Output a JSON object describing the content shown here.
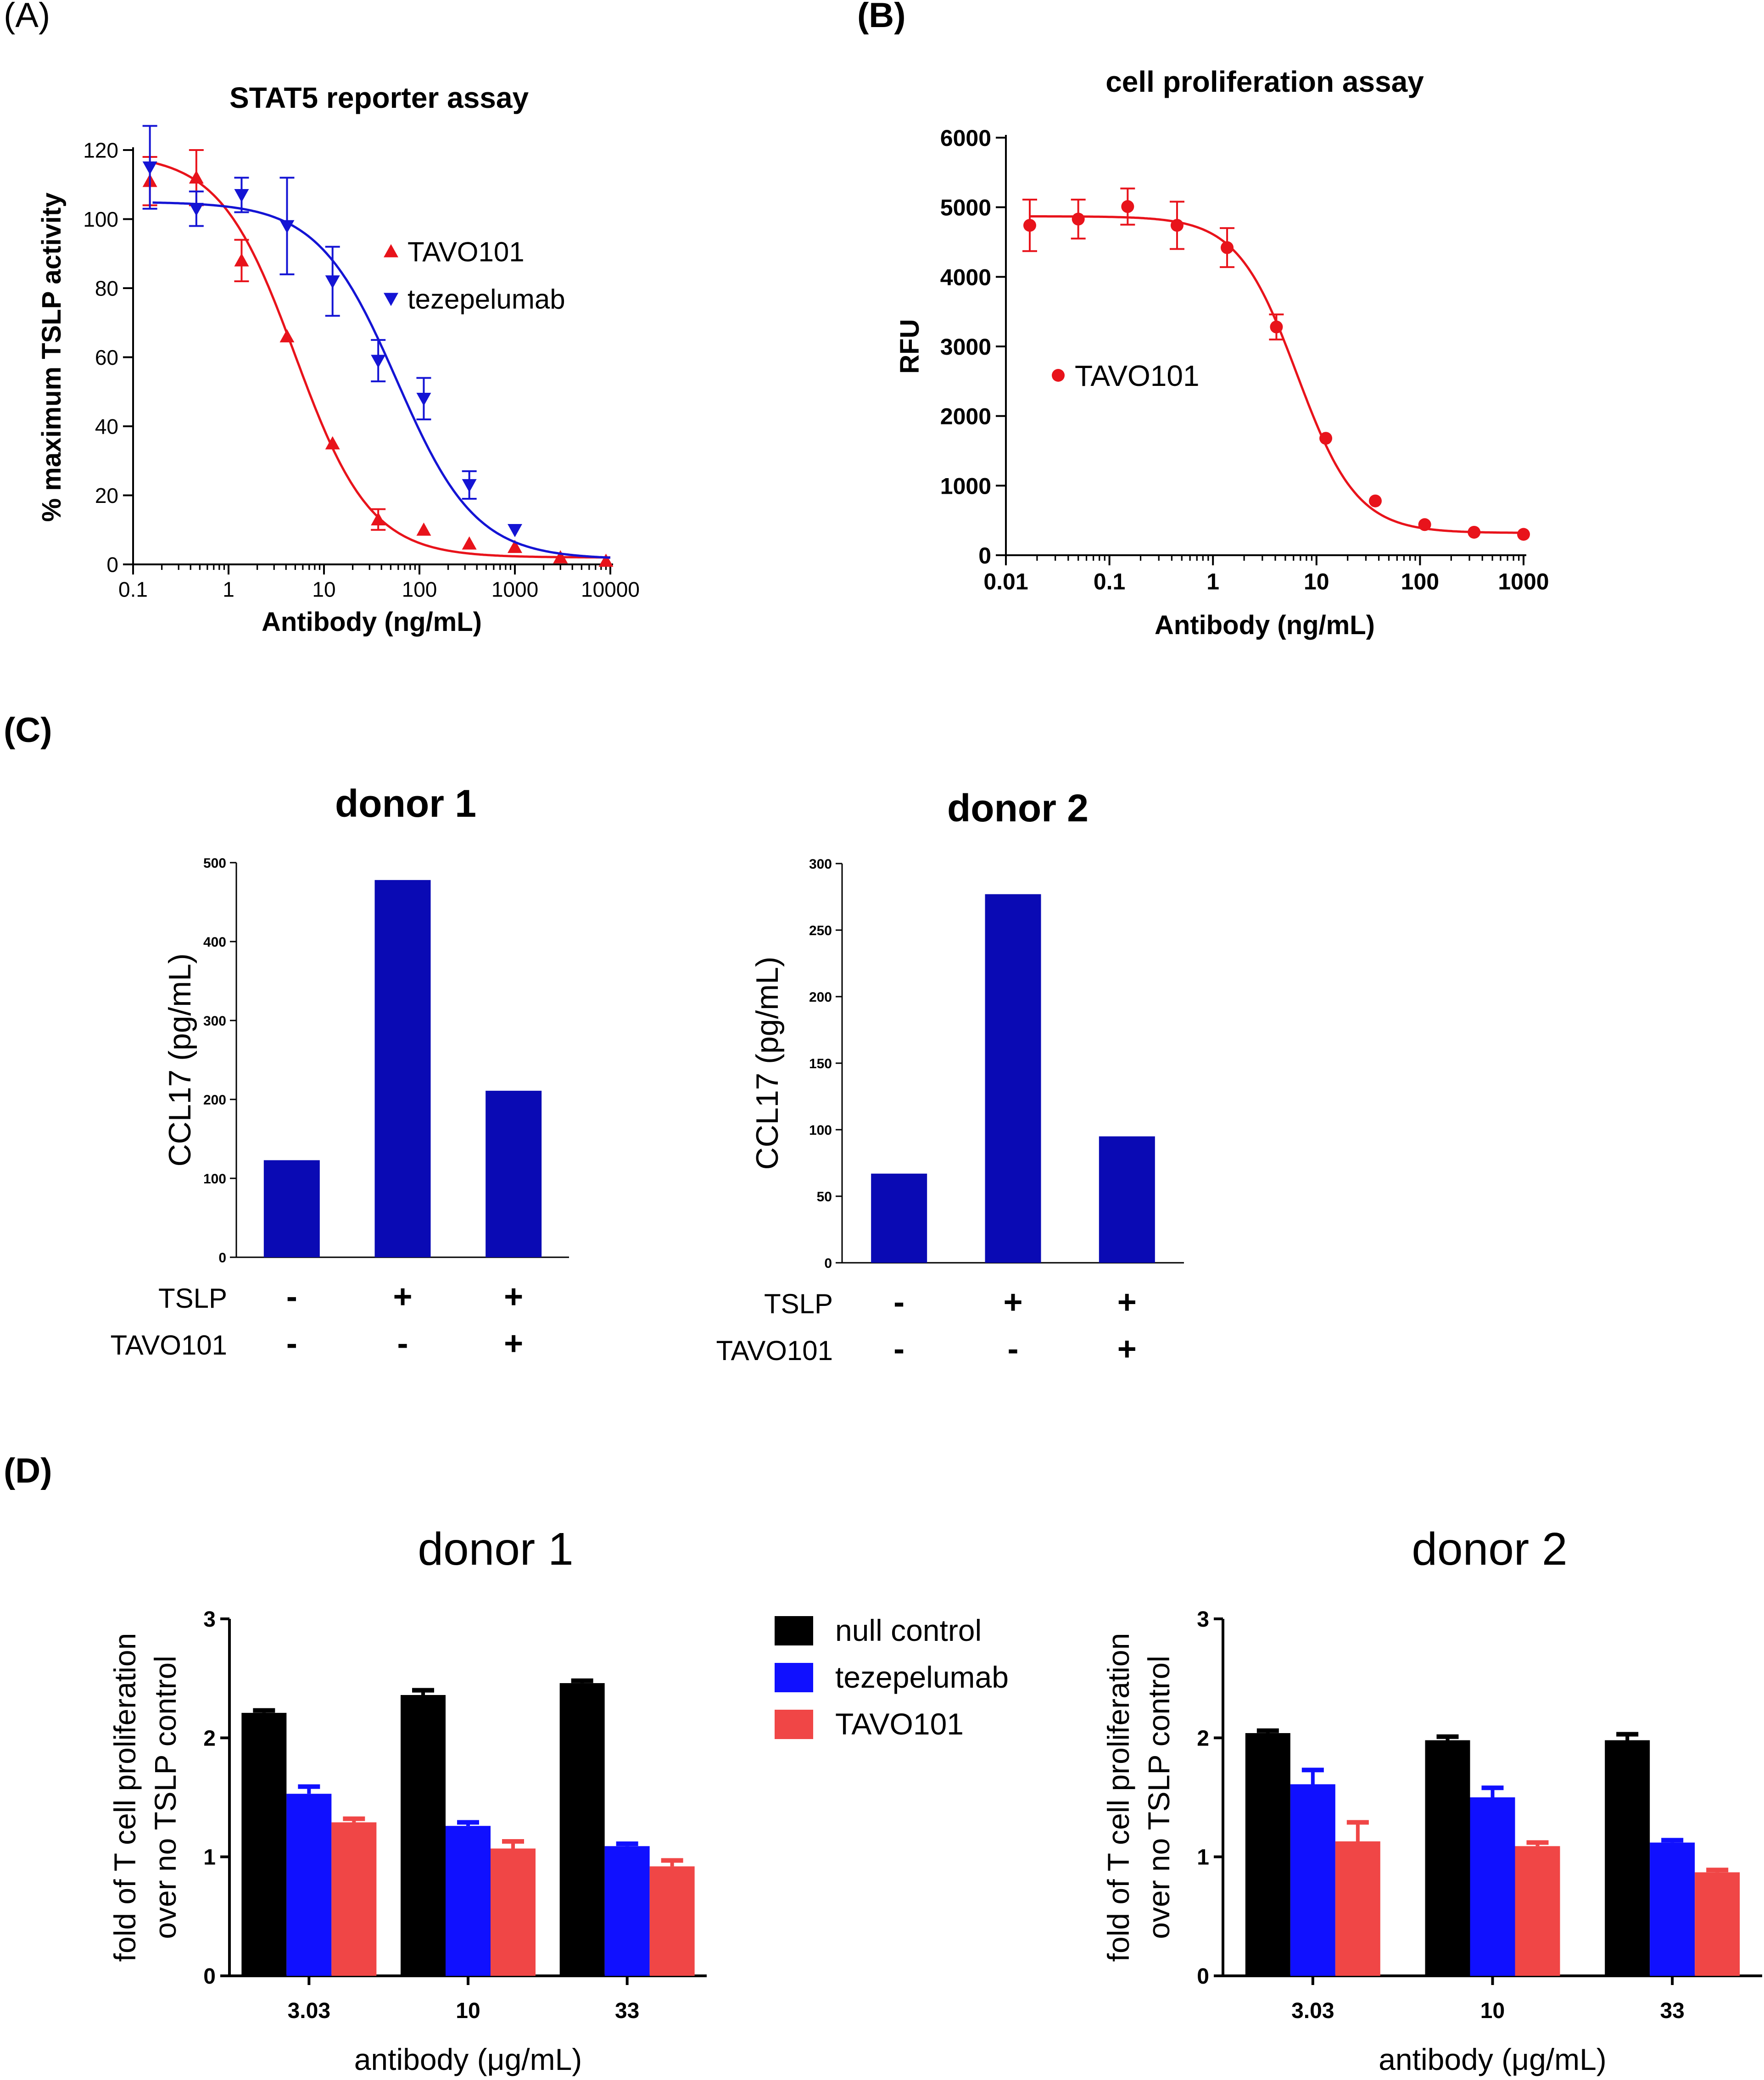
{
  "panels": {
    "A": "(A)",
    "B": "(B)",
    "C": "(C)",
    "D": "(D)"
  },
  "colors": {
    "red": "#e8131b",
    "blue": "#1414d4",
    "navy": "#0a0ab4",
    "black": "#000000",
    "bright_blue": "#1010ff",
    "salmon": "#f04646"
  },
  "chart_data": [
    {
      "id": "A",
      "type": "scatter",
      "title": "STAT5 reporter assay",
      "xlabel": "Antibody (ng/mL)",
      "ylabel": "% maximum TSLP activity",
      "xscale": "log",
      "xlim": [
        0.1,
        10000
      ],
      "ylim": [
        0,
        120
      ],
      "xticks": [
        0.1,
        1,
        10,
        100,
        1000,
        10000
      ],
      "xtick_labels": [
        "0.1",
        "1",
        "10",
        "100",
        "1000",
        "10000"
      ],
      "yticks": [
        0,
        20,
        40,
        60,
        80,
        100,
        120
      ],
      "ytick_labels": [
        "0",
        "20",
        "40",
        "60",
        "80",
        "100",
        "120"
      ],
      "legend": "top-right",
      "series": [
        {
          "name": "TAVO101",
          "marker": "triangle-up",
          "x": [
            0.15,
            0.46,
            1.37,
            4.1,
            12.3,
            37,
            111,
            333,
            1000,
            3000,
            9000
          ],
          "y": [
            111,
            112,
            88,
            66,
            35,
            13,
            10,
            6,
            5,
            2,
            1
          ],
          "err": [
            7,
            8,
            6,
            0,
            0,
            3,
            0,
            0,
            0,
            0,
            0
          ],
          "fit": {
            "top": 119,
            "bottom": 2,
            "ic50": 5,
            "hill": 1.1
          }
        },
        {
          "name": "tezepelumab",
          "marker": "triangle-down",
          "x": [
            0.15,
            0.46,
            1.37,
            4.1,
            12.3,
            37,
            111,
            333,
            1000
          ],
          "y": [
            115,
            103,
            107,
            98,
            82,
            59,
            48,
            23,
            10
          ],
          "err": [
            12,
            5,
            5,
            14,
            10,
            6,
            6,
            4,
            0
          ],
          "fit": {
            "top": 105,
            "bottom": 1.5,
            "ic50": 58,
            "hill": 1.05
          }
        }
      ]
    },
    {
      "id": "B",
      "type": "scatter",
      "title": "cell proliferation assay",
      "xlabel": "Antibody (ng/mL)",
      "ylabel": "RFU",
      "xscale": "log",
      "xlim": [
        0.01,
        1000
      ],
      "ylim": [
        0,
        6000
      ],
      "xticks": [
        0.01,
        0.1,
        1,
        10,
        100,
        1000
      ],
      "xtick_labels": [
        "0.01",
        "0.1",
        "1",
        "10",
        "100",
        "1000"
      ],
      "yticks": [
        0,
        1000,
        2000,
        3000,
        4000,
        5000,
        6000
      ],
      "ytick_labels": [
        "0",
        "1000",
        "2000",
        "3000",
        "4000",
        "5000",
        "6000"
      ],
      "legend": "center-left",
      "series": [
        {
          "name": "TAVO101",
          "marker": "circle",
          "x": [
            0.017,
            0.05,
            0.15,
            0.45,
            1.37,
            4.1,
            12.3,
            37,
            111,
            333,
            1000
          ],
          "y": [
            4740,
            4830,
            5010,
            4740,
            4420,
            3280,
            1680,
            780,
            440,
            330,
            300
          ],
          "err": [
            370,
            280,
            260,
            340,
            280,
            180,
            0,
            0,
            0,
            0,
            0
          ],
          "fit": {
            "top": 4870,
            "bottom": 320,
            "ic50": 6.5,
            "hill": 1.5
          }
        }
      ]
    },
    {
      "id": "C1",
      "type": "bar",
      "title": "donor 1",
      "ylabel": "CCL17 (pg/mL)",
      "ylim": [
        0,
        500
      ],
      "yticks": [
        0,
        100,
        200,
        300,
        400,
        500
      ],
      "ytick_labels": [
        "0",
        "100",
        "200",
        "300",
        "400",
        "500"
      ],
      "values": [
        123,
        478,
        211
      ],
      "row_labels": [
        "TSLP",
        "TAVO101"
      ],
      "conditions": [
        [
          "-",
          "+",
          "+"
        ],
        [
          "-",
          "-",
          "+"
        ]
      ]
    },
    {
      "id": "C2",
      "type": "bar",
      "title": "donor 2",
      "ylabel": "CCL17 (pg/mL)",
      "ylim": [
        0,
        300
      ],
      "yticks": [
        0,
        50,
        100,
        150,
        200,
        250,
        300
      ],
      "ytick_labels": [
        "0",
        "50",
        "100",
        "150",
        "200",
        "250",
        "300"
      ],
      "values": [
        67,
        277,
        95
      ],
      "row_labels": [
        "TSLP",
        "TAVO101"
      ],
      "conditions": [
        [
          "-",
          "+",
          "+"
        ],
        [
          "-",
          "-",
          "+"
        ]
      ]
    },
    {
      "id": "D1",
      "type": "bar",
      "title": "donor 1",
      "xlabel": "antibody (μg/mL)",
      "ylabel": [
        "fold of T cell proliferation",
        "over no TSLP control"
      ],
      "ylim": [
        0,
        3
      ],
      "yticks": [
        0,
        1,
        2,
        3
      ],
      "ytick_labels": [
        "0",
        "1",
        "2",
        "3"
      ],
      "categories": [
        "3.03",
        "10",
        "33"
      ],
      "series": [
        {
          "name": "null control",
          "values": [
            2.21,
            2.36,
            2.46
          ],
          "err": [
            0.02,
            0.04,
            0.02
          ]
        },
        {
          "name": "tezepelumab",
          "values": [
            1.53,
            1.26,
            1.09
          ],
          "err": [
            0.06,
            0.03,
            0.02
          ]
        },
        {
          "name": "TAVO101",
          "values": [
            1.29,
            1.07,
            0.92
          ],
          "err": [
            0.03,
            0.06,
            0.05
          ]
        }
      ]
    },
    {
      "id": "D2",
      "type": "bar",
      "title": "donor 2",
      "xlabel": "antibody (μg/mL)",
      "ylabel": [
        "fold of T cell proliferation",
        "over no TSLP control"
      ],
      "ylim": [
        0,
        3
      ],
      "yticks": [
        0,
        1,
        2,
        3
      ],
      "ytick_labels": [
        "0",
        "1",
        "2",
        "3"
      ],
      "categories": [
        "3.03",
        "10",
        "33"
      ],
      "series": [
        {
          "name": "null control",
          "values": [
            2.04,
            1.98,
            1.98
          ],
          "err": [
            0.02,
            0.03,
            0.05
          ]
        },
        {
          "name": "tezepelumab",
          "values": [
            1.61,
            1.5,
            1.12
          ],
          "err": [
            0.12,
            0.08,
            0.02
          ]
        },
        {
          "name": "TAVO101",
          "values": [
            1.13,
            1.09,
            0.87
          ],
          "err": [
            0.16,
            0.03,
            0.02
          ]
        }
      ]
    }
  ],
  "legend_D": [
    "null control",
    "tezepelumab",
    "TAVO101"
  ]
}
